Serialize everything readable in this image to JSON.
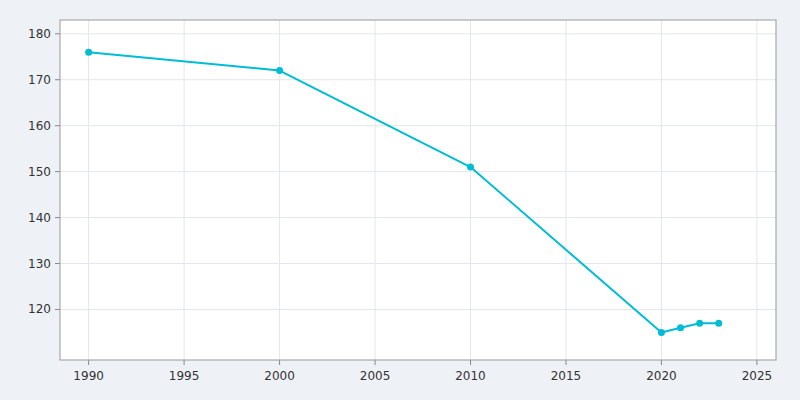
{
  "chart_data": {
    "type": "line",
    "x": [
      1990,
      2000,
      2010,
      2020,
      2021,
      2022,
      2023
    ],
    "y": [
      176,
      172,
      151,
      115,
      116,
      117,
      117
    ],
    "color": "#00bcd4",
    "marker": "circle",
    "xlim": [
      1988.5,
      2026
    ],
    "ylim": [
      109,
      183
    ],
    "xticks": [
      1990,
      1995,
      2000,
      2005,
      2010,
      2015,
      2020,
      2025
    ],
    "yticks": [
      120,
      130,
      140,
      150,
      160,
      170,
      180
    ],
    "grid": true
  }
}
